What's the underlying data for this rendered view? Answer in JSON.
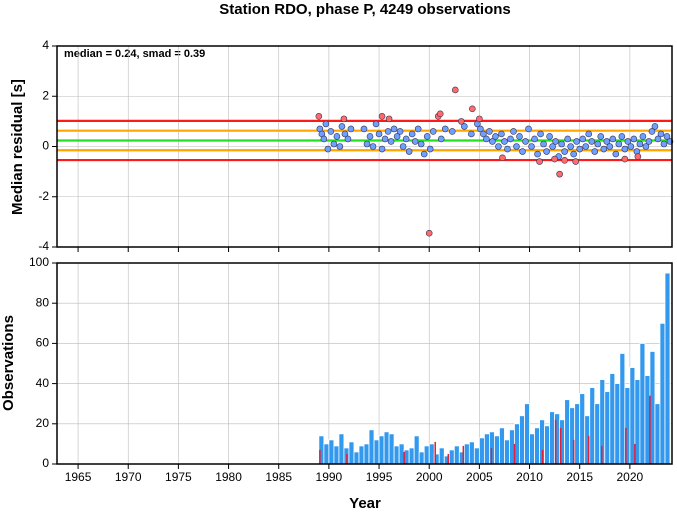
{
  "chart_data": [
    {
      "type": "scatter",
      "title": "Station RDO, phase P, 4249 observations",
      "annotation": "median = 0.24, smad = 0.39",
      "ylabel": "Median residual [s]",
      "xlim": [
        1962.9,
        2024.2
      ],
      "xticks": [
        1965,
        1970,
        1975,
        1980,
        1985,
        1990,
        1995,
        2000,
        2005,
        2010,
        2015,
        2020
      ],
      "ylim": [
        -4,
        4
      ],
      "yticks": [
        -4,
        -2,
        0,
        2,
        4
      ],
      "grid": true,
      "reference_lines": [
        {
          "value": 1.02,
          "color": "#ff1a1a"
        },
        {
          "value": -0.54,
          "color": "#ff1a1a"
        },
        {
          "value": 0.63,
          "color": "#ffa500"
        },
        {
          "value": -0.15,
          "color": "#ffa500"
        },
        {
          "value": 0.24,
          "color": "#22e022"
        }
      ],
      "series": [
        {
          "color": "#6f9fff",
          "x": [
            1989.1,
            1989.3,
            1989.5,
            1989.7,
            1989.9,
            1990.2,
            1990.5,
            1990.8,
            1991.1,
            1991.3,
            1991.6,
            1991.9,
            1992.2,
            1993.5,
            1993.8,
            1994.1,
            1994.4,
            1994.7,
            1995.0,
            1995.3,
            1995.6,
            1995.9,
            1996.2,
            1996.5,
            1996.8,
            1997.1,
            1997.4,
            1997.7,
            1998.0,
            1998.3,
            1998.6,
            1998.9,
            1999.2,
            1999.5,
            1999.8,
            2000.1,
            2000.4,
            2001.2,
            2001.6,
            2002.3,
            2003.5,
            2004.2,
            2004.8,
            2005.1,
            2005.4,
            2005.7,
            2006.0,
            2006.3,
            2006.6,
            2006.9,
            2007.2,
            2007.5,
            2007.8,
            2008.1,
            2008.4,
            2008.7,
            2009.0,
            2009.3,
            2009.6,
            2009.9,
            2010.2,
            2010.5,
            2010.8,
            2011.1,
            2011.4,
            2011.7,
            2012.0,
            2012.3,
            2012.6,
            2012.9,
            2013.2,
            2013.5,
            2013.8,
            2014.1,
            2014.4,
            2014.7,
            2015.0,
            2015.3,
            2015.6,
            2015.9,
            2016.2,
            2016.5,
            2016.8,
            2017.1,
            2017.4,
            2017.7,
            2018.0,
            2018.3,
            2018.6,
            2018.9,
            2019.2,
            2019.5,
            2019.8,
            2020.1,
            2020.4,
            2020.7,
            2021.0,
            2021.3,
            2021.6,
            2021.9,
            2022.2,
            2022.5,
            2022.8,
            2023.1,
            2023.4,
            2023.7,
            2024.0
          ],
          "values": [
            0.7,
            0.5,
            0.3,
            0.9,
            -0.1,
            0.6,
            0.1,
            0.4,
            0.0,
            0.8,
            0.5,
            0.3,
            0.7,
            0.7,
            0.1,
            0.4,
            0.0,
            0.9,
            0.5,
            -0.1,
            0.3,
            0.6,
            0.2,
            0.7,
            0.4,
            0.6,
            0.0,
            0.3,
            -0.2,
            0.5,
            0.2,
            0.7,
            0.1,
            -0.3,
            0.4,
            -0.1,
            0.6,
            0.3,
            0.7,
            0.6,
            0.8,
            0.5,
            0.9,
            0.7,
            0.5,
            0.3,
            0.6,
            0.2,
            0.4,
            0.0,
            0.5,
            0.2,
            -0.1,
            0.3,
            0.6,
            0.0,
            0.4,
            -0.2,
            0.2,
            0.7,
            0.0,
            0.3,
            -0.3,
            0.5,
            0.1,
            -0.2,
            0.4,
            0.0,
            0.2,
            -0.4,
            0.1,
            -0.2,
            0.3,
            0.0,
            -0.3,
            0.2,
            -0.1,
            0.3,
            0.0,
            0.5,
            0.2,
            -0.2,
            0.1,
            0.4,
            -0.1,
            0.2,
            0.0,
            0.3,
            -0.3,
            0.1,
            0.4,
            -0.1,
            0.2,
            0.0,
            0.3,
            -0.2,
            0.1,
            0.4,
            0.0,
            0.2,
            0.6,
            0.8,
            0.3,
            0.5,
            0.1,
            0.4,
            0.2
          ]
        },
        {
          "color": "#ff6b6b",
          "x": [
            1989.0,
            1991.5,
            1995.3,
            1996.0,
            2000.0,
            2000.9,
            2001.1,
            2002.6,
            2003.2,
            2004.3,
            2005.0,
            2007.3,
            2011.0,
            2012.5,
            2013.0,
            2013.5,
            2014.6,
            2019.5,
            2020.8
          ],
          "values": [
            1.2,
            1.1,
            1.2,
            1.1,
            -3.45,
            1.2,
            1.3,
            2.25,
            1.0,
            1.5,
            1.1,
            -0.45,
            -0.6,
            -0.5,
            -1.1,
            -0.55,
            -0.6,
            -0.5,
            -0.4
          ]
        }
      ]
    },
    {
      "type": "histogram",
      "xlabel": "Year",
      "ylabel": "Observations",
      "xlim": [
        1962.9,
        2024.2
      ],
      "xticks": [
        1965,
        1970,
        1975,
        1980,
        1985,
        1990,
        1995,
        2000,
        2005,
        2010,
        2015,
        2020
      ],
      "ylim": [
        0,
        100
      ],
      "yticks": [
        0,
        20,
        40,
        60,
        80,
        100
      ],
      "grid": true,
      "color": "#3399ee",
      "bins": [
        1989,
        1989.5,
        1990,
        1990.5,
        1991,
        1991.5,
        1992,
        1992.5,
        1993,
        1993.5,
        1994,
        1994.5,
        1995,
        1995.5,
        1996,
        1996.5,
        1997,
        1997.5,
        1998,
        1998.5,
        1999,
        1999.5,
        2000,
        2000.5,
        2001,
        2001.5,
        2002,
        2002.5,
        2003,
        2003.5,
        2004,
        2004.5,
        2005,
        2005.5,
        2006,
        2006.5,
        2007,
        2007.5,
        2008,
        2008.5,
        2009,
        2009.5,
        2010,
        2010.5,
        2011,
        2011.5,
        2012,
        2012.5,
        2013,
        2013.5,
        2014,
        2014.5,
        2015,
        2015.5,
        2016,
        2016.5,
        2017,
        2017.5,
        2018,
        2018.5,
        2019,
        2019.5,
        2020,
        2020.5,
        2021,
        2021.5,
        2022,
        2022.5,
        2023,
        2023.5,
        2024
      ],
      "values": [
        14,
        10,
        12,
        9,
        15,
        8,
        11,
        6,
        9,
        10,
        17,
        12,
        14,
        16,
        15,
        9,
        10,
        7,
        8,
        14,
        6,
        9,
        10,
        5,
        8,
        4,
        7,
        9,
        6,
        10,
        11,
        8,
        13,
        15,
        16,
        14,
        18,
        12,
        17,
        20,
        24,
        30,
        15,
        18,
        22,
        19,
        26,
        25,
        22,
        32,
        28,
        30,
        35,
        24,
        38,
        30,
        42,
        36,
        45,
        40,
        55,
        38,
        48,
        42,
        60,
        44,
        56,
        30,
        70,
        95
      ],
      "outliers": {
        "color": "#e0203a",
        "x": [
          1989.1,
          1991.8,
          1997.5,
          2000.6,
          2001.9,
          2003.4,
          2006.2,
          2008.5,
          2011.3,
          2012.6,
          2013.1,
          2014.4,
          2015.9,
          2017.2,
          2019.6,
          2020.5,
          2022.0
        ],
        "values": [
          7,
          5,
          6,
          11,
          5,
          9,
          8,
          10,
          7,
          22,
          18,
          12,
          14,
          9,
          18,
          10,
          34
        ]
      }
    }
  ]
}
